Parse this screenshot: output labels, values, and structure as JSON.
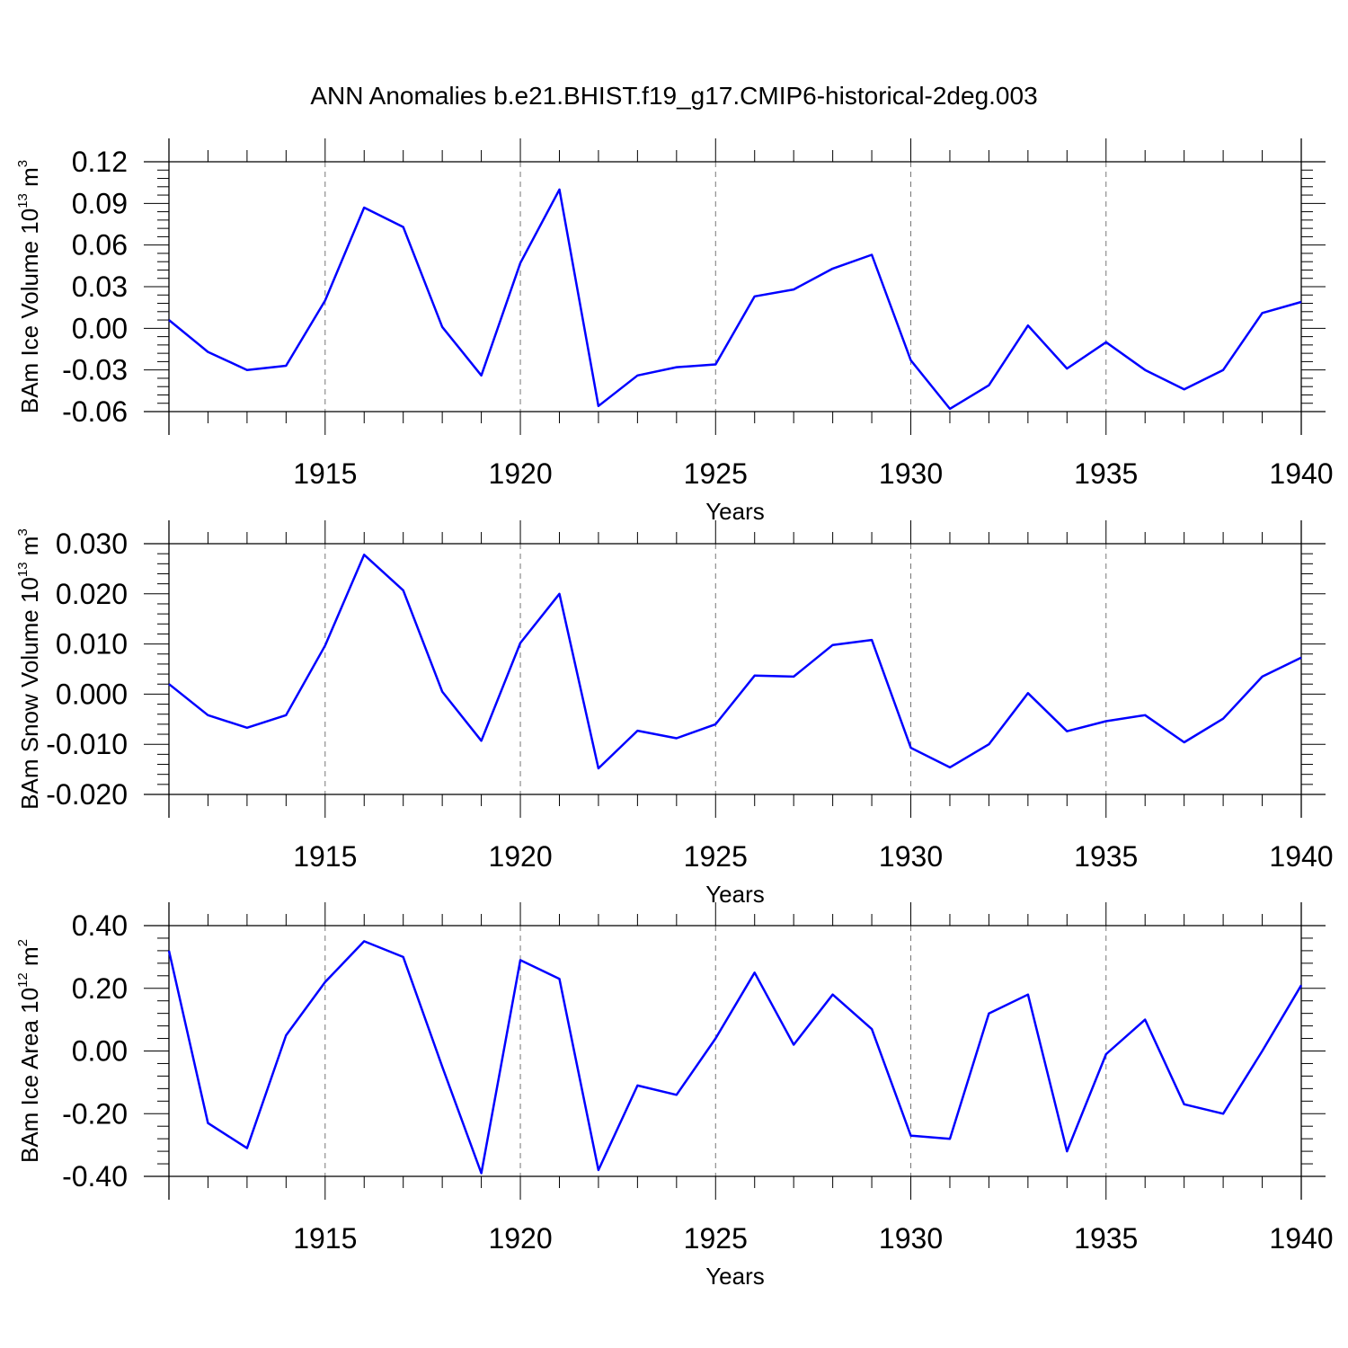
{
  "title": "ANN Anomalies b.e21.BHIST.f19_g17.CMIP6-historical-2deg.003",
  "colors": {
    "line": "#0000ff",
    "grid": "#777777"
  },
  "chart_data": [
    {
      "type": "line",
      "title": "ANN Anomalies b.e21.BHIST.f19_g17.CMIP6-historical-2deg.003",
      "ylabel": {
        "text": "BAm Ice Volume 10",
        "sup1": "13",
        "mid": " m",
        "sup2": "3"
      },
      "xlabel": "Years",
      "xlim": [
        1911,
        1940
      ],
      "ylim": [
        -0.06,
        0.12
      ],
      "xticks": [
        "1915",
        "1920",
        "1925",
        "1930",
        "1935",
        "1940"
      ],
      "yticks": [
        "0.12",
        "0.09",
        "0.06",
        "0.03",
        "0.00",
        "-0.03",
        "-0.06"
      ],
      "grid": "vertical dashed at major x ticks",
      "x": [
        1911,
        1912,
        1913,
        1914,
        1915,
        1916,
        1917,
        1918,
        1919,
        1920,
        1921,
        1922,
        1923,
        1924,
        1925,
        1926,
        1927,
        1928,
        1929,
        1930,
        1931,
        1932,
        1933,
        1934,
        1935,
        1936,
        1937,
        1938,
        1939,
        1940
      ],
      "values": [
        0.006,
        -0.017,
        -0.03,
        -0.027,
        0.02,
        0.087,
        0.073,
        0.001,
        -0.034,
        0.047,
        0.1,
        -0.056,
        -0.034,
        -0.028,
        -0.026,
        0.023,
        0.028,
        0.043,
        0.053,
        -0.023,
        -0.058,
        -0.041,
        0.002,
        -0.029,
        -0.01,
        -0.03,
        -0.044,
        -0.03,
        0.011,
        0.019
      ]
    },
    {
      "type": "line",
      "ylabel": {
        "text": "BAm Snow Volume 10",
        "sup1": "13",
        "mid": " m",
        "sup2": "3"
      },
      "xlabel": "Years",
      "xlim": [
        1911,
        1940
      ],
      "ylim": [
        -0.02,
        0.03
      ],
      "xticks": [
        "1915",
        "1920",
        "1925",
        "1930",
        "1935",
        "1940"
      ],
      "yticks": [
        "0.030",
        "0.020",
        "0.010",
        "0.000",
        "-0.010",
        "-0.020"
      ],
      "grid": "vertical dashed at major x ticks",
      "x": [
        1911,
        1912,
        1913,
        1914,
        1915,
        1916,
        1917,
        1918,
        1919,
        1920,
        1921,
        1922,
        1923,
        1924,
        1925,
        1926,
        1927,
        1928,
        1929,
        1930,
        1931,
        1932,
        1933,
        1934,
        1935,
        1936,
        1937,
        1938,
        1939,
        1940
      ],
      "values": [
        0.002,
        -0.0042,
        -0.0067,
        -0.0042,
        0.0097,
        0.0278,
        0.0207,
        0.0005,
        -0.0093,
        0.0102,
        0.02,
        -0.0148,
        -0.0073,
        -0.0088,
        -0.006,
        0.0037,
        0.0035,
        0.0098,
        0.0108,
        -0.0107,
        -0.0146,
        -0.01,
        0.0002,
        -0.0074,
        -0.0054,
        -0.0042,
        -0.0096,
        -0.0049,
        0.0035,
        0.0073
      ]
    },
    {
      "type": "line",
      "ylabel": {
        "text": "BAm Ice Area 10",
        "sup1": "12",
        "mid": " m",
        "sup2": "2"
      },
      "xlabel": "Years",
      "xlim": [
        1911,
        1940
      ],
      "ylim": [
        -0.4,
        0.4
      ],
      "xticks": [
        "1915",
        "1920",
        "1925",
        "1930",
        "1935",
        "1940"
      ],
      "yticks": [
        "0.40",
        "0.20",
        "0.00",
        "-0.20",
        "-0.40"
      ],
      "grid": "vertical dashed at major x ticks",
      "x": [
        1911,
        1912,
        1913,
        1914,
        1915,
        1916,
        1917,
        1918,
        1919,
        1920,
        1921,
        1922,
        1923,
        1924,
        1925,
        1926,
        1927,
        1928,
        1929,
        1930,
        1931,
        1932,
        1933,
        1934,
        1935,
        1936,
        1937,
        1938,
        1939,
        1940
      ],
      "values": [
        0.32,
        -0.23,
        -0.31,
        0.05,
        0.22,
        0.35,
        0.3,
        -0.05,
        -0.39,
        0.29,
        0.23,
        -0.38,
        -0.11,
        -0.14,
        0.04,
        0.25,
        0.02,
        0.18,
        0.07,
        -0.27,
        -0.28,
        0.12,
        0.18,
        -0.32,
        -0.01,
        0.1,
        -0.17,
        -0.2,
        0.0,
        0.21
      ]
    }
  ]
}
